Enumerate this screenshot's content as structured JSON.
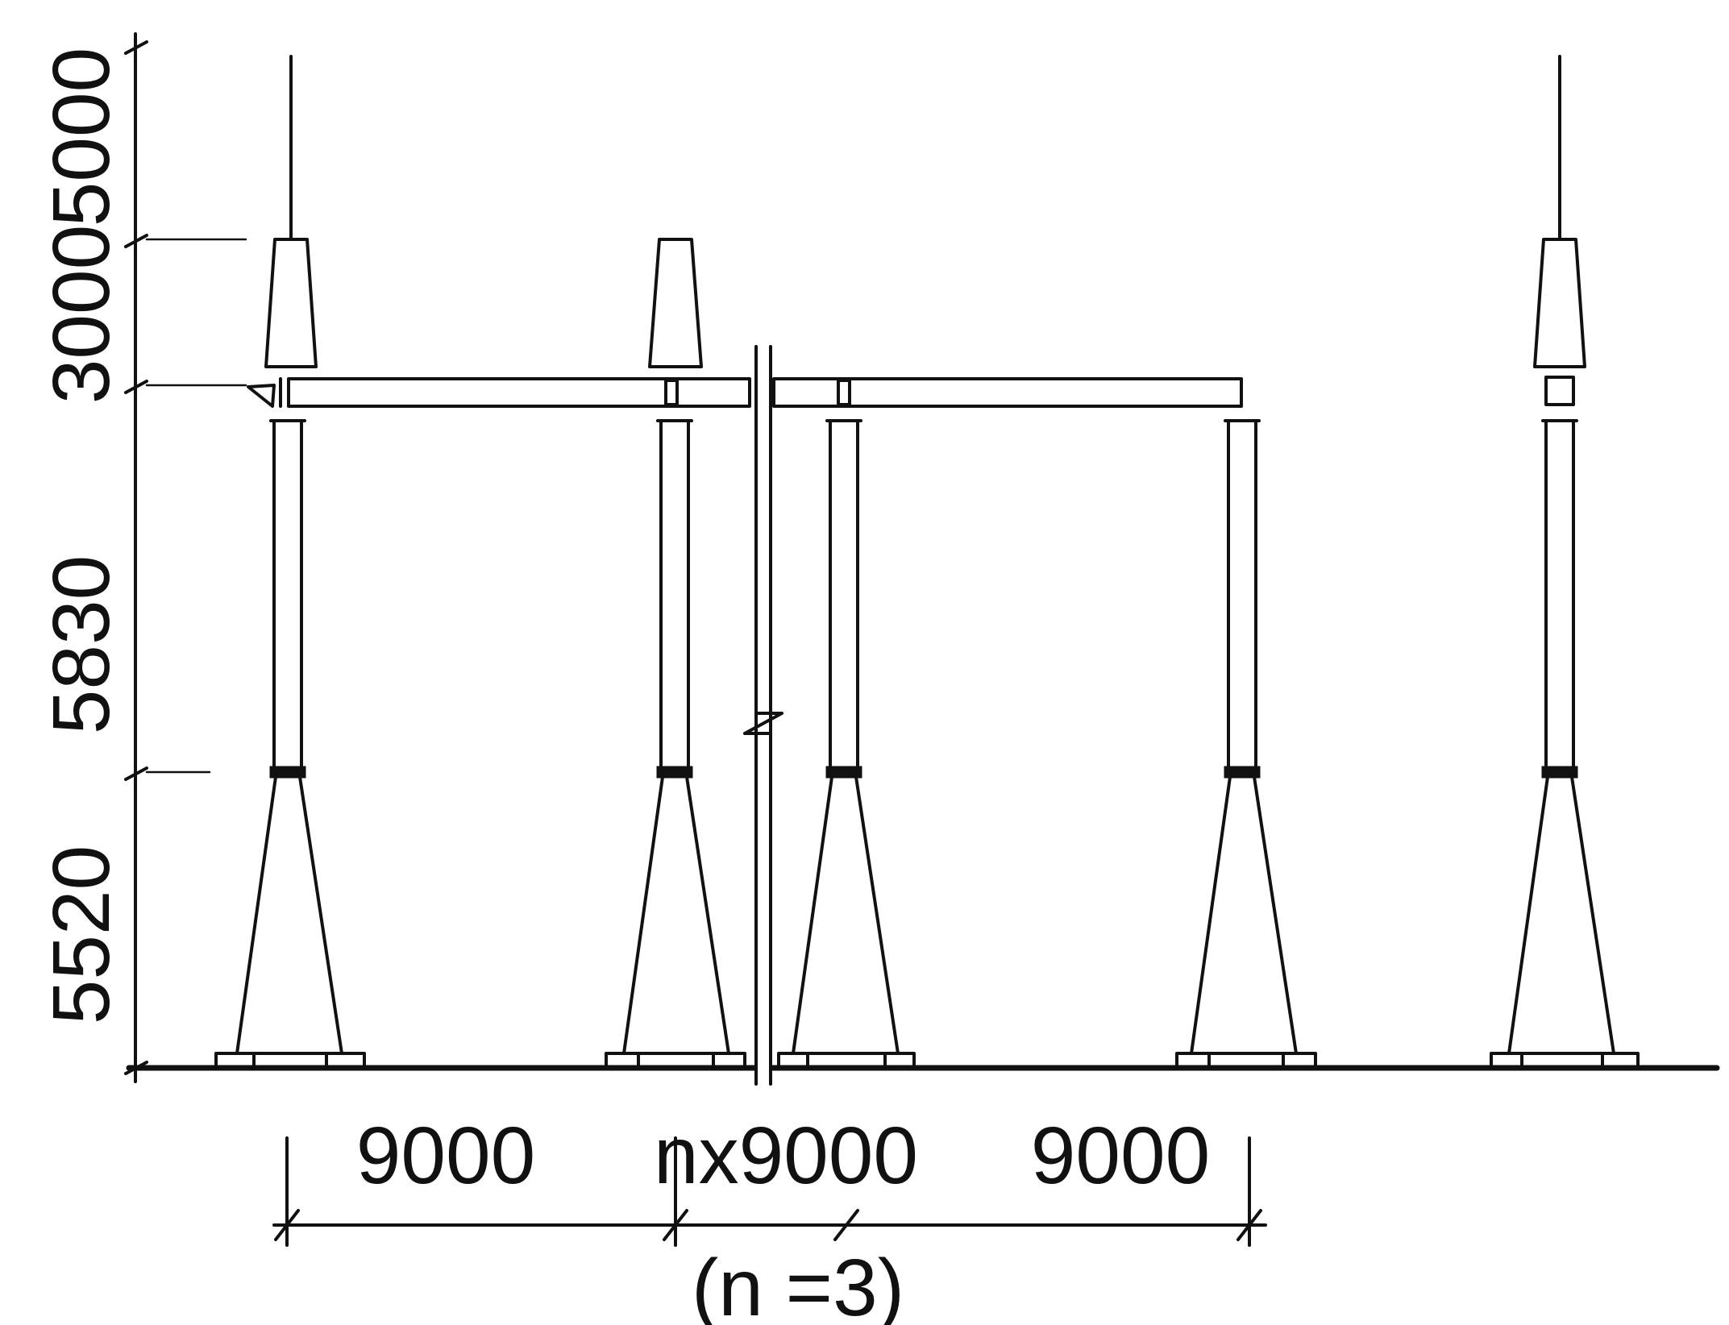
{
  "vertical_dimensions": [
    "5000",
    "3000",
    "5830",
    "5520"
  ],
  "horizontal_dimensions": [
    "9000",
    "nx9000",
    "9000"
  ],
  "repeat_note": "(n =3)"
}
